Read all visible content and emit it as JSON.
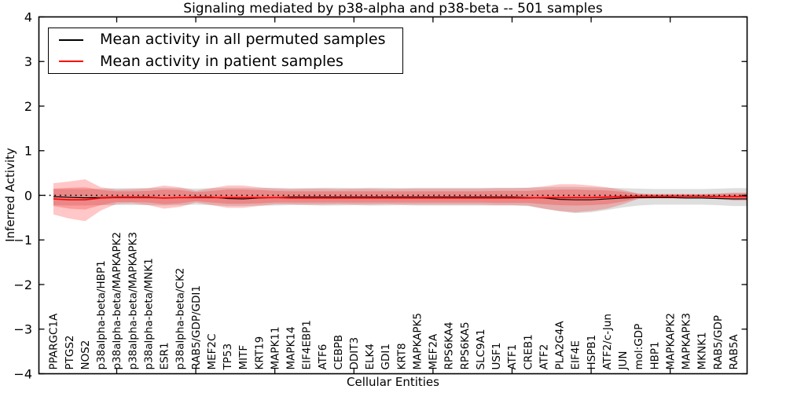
{
  "figure": {
    "title": "Signaling mediated by p38-alpha and p38-beta -- 501 samples",
    "xlabel": "Cellular Entities",
    "ylabel": "Inferred Activity"
  },
  "chart_data": {
    "type": "line",
    "title": "Signaling mediated by p38-alpha and p38-beta -- 501 samples",
    "xlabel": "Cellular Entities",
    "ylabel": "Inferred Activity",
    "ylim": [
      -4,
      4
    ],
    "yticks": [
      {
        "value": 4,
        "label": "4"
      },
      {
        "value": 3,
        "label": "3"
      },
      {
        "value": 2,
        "label": "2"
      },
      {
        "value": 1,
        "label": "1"
      },
      {
        "value": 0,
        "label": "0"
      },
      {
        "value": -1,
        "label": "−1"
      },
      {
        "value": -2,
        "label": "−2"
      },
      {
        "value": -3,
        "label": "−3"
      },
      {
        "value": -4,
        "label": "−4"
      }
    ],
    "xtick_every": 5,
    "grid": false,
    "legend_position": "upper left",
    "legend": [
      {
        "label": "Mean activity in all permuted samples",
        "color": "#000000"
      },
      {
        "label": "Mean activity in patient samples",
        "color": "#ff0000"
      }
    ],
    "zero_line": {
      "style": "dotted",
      "color": "#000000",
      "y": 0
    },
    "categories": [
      "PPARGC1A",
      "PTGS2",
      "NOS2",
      "p38alpha-beta/HBP1",
      "p38alpha-beta/MAPKAPK2",
      "p38alpha-beta/MAPKAPK3",
      "p38alpha-beta/MNK1",
      "ESR1",
      "p38alpha-beta/CK2",
      "RAB5/GDP/GDI1",
      "MEF2C",
      "TP53",
      "MITF",
      "KRT19",
      "MAPK11",
      "MAPK14",
      "EIF4EBP1",
      "ATF6",
      "CEBPB",
      "DDIT3",
      "ELK4",
      "GDI1",
      "KRT8",
      "MAPKAPK5",
      "MEF2A",
      "RPS6KA4",
      "RPS6KA5",
      "SLC9A1",
      "USF1",
      "ATF1",
      "CREB1",
      "ATF2",
      "PLA2G4A",
      "EIF4E",
      "HSPB1",
      "ATF2/c-Jun",
      "JUN",
      "mol:GDP",
      "HBP1",
      "MAPKAPK2",
      "MAPKAPK3",
      "MKNK1",
      "RAB5/GDP",
      "RAB5A"
    ],
    "series": [
      {
        "name": "Mean activity in all permuted samples",
        "color": "#000000",
        "values": [
          -0.03,
          -0.045,
          -0.055,
          -0.05,
          -0.04,
          -0.04,
          -0.04,
          -0.06,
          -0.05,
          -0.04,
          -0.04,
          -0.07,
          -0.08,
          -0.06,
          -0.05,
          -0.04,
          -0.04,
          -0.04,
          -0.04,
          -0.04,
          -0.04,
          -0.04,
          -0.04,
          -0.04,
          -0.04,
          -0.04,
          -0.04,
          -0.04,
          -0.04,
          -0.04,
          -0.05,
          -0.06,
          -0.09,
          -0.1,
          -0.1,
          -0.08,
          -0.06,
          -0.05,
          -0.05,
          -0.05,
          -0.06,
          -0.06,
          -0.07,
          -0.08
        ]
      },
      {
        "name": "Mean activity in patient samples",
        "color": "#ff0000",
        "values": [
          -0.08,
          -0.1,
          -0.1,
          -0.06,
          -0.05,
          -0.05,
          -0.05,
          -0.06,
          -0.05,
          -0.05,
          -0.05,
          -0.05,
          -0.05,
          -0.05,
          -0.05,
          -0.06,
          -0.06,
          -0.06,
          -0.06,
          -0.06,
          -0.06,
          -0.06,
          -0.06,
          -0.06,
          -0.06,
          -0.06,
          -0.06,
          -0.06,
          -0.06,
          -0.06,
          -0.06,
          -0.05,
          -0.05,
          -0.05,
          -0.05,
          -0.04,
          -0.03,
          -0.02,
          -0.02,
          -0.02,
          -0.02,
          -0.02,
          -0.03,
          -0.03
        ]
      }
    ],
    "bands": [
      {
        "name": "permuted-samples-std-band",
        "color": "#000000",
        "opacity": 0.13,
        "upper": [
          0.14,
          0.14,
          0.14,
          0.15,
          0.16,
          0.16,
          0.16,
          0.17,
          0.16,
          0.15,
          0.16,
          0.17,
          0.17,
          0.16,
          0.17,
          0.16,
          0.16,
          0.17,
          0.17,
          0.16,
          0.17,
          0.17,
          0.16,
          0.17,
          0.17,
          0.17,
          0.17,
          0.17,
          0.17,
          0.17,
          0.17,
          0.18,
          0.19,
          0.19,
          0.18,
          0.17,
          0.16,
          0.15,
          0.14,
          0.14,
          0.14,
          0.14,
          0.15,
          0.16
        ],
        "lower": [
          -0.22,
          -0.23,
          -0.23,
          -0.22,
          -0.22,
          -0.22,
          -0.22,
          -0.23,
          -0.22,
          -0.21,
          -0.22,
          -0.24,
          -0.24,
          -0.23,
          -0.23,
          -0.22,
          -0.22,
          -0.23,
          -0.23,
          -0.22,
          -0.23,
          -0.23,
          -0.22,
          -0.23,
          -0.23,
          -0.23,
          -0.23,
          -0.23,
          -0.23,
          -0.23,
          -0.24,
          -0.3,
          -0.36,
          -0.4,
          -0.38,
          -0.33,
          -0.27,
          -0.23,
          -0.21,
          -0.21,
          -0.21,
          -0.21,
          -0.22,
          -0.24
        ]
      },
      {
        "name": "patient-samples-std-band-outer",
        "color": "#ff0000",
        "opacity": 0.22,
        "upper": [
          0.27,
          0.31,
          0.36,
          0.18,
          0.13,
          0.14,
          0.16,
          0.22,
          0.18,
          0.1,
          0.16,
          0.22,
          0.22,
          0.18,
          0.15,
          0.14,
          0.15,
          0.15,
          0.14,
          0.15,
          0.15,
          0.14,
          0.15,
          0.15,
          0.15,
          0.15,
          0.15,
          0.15,
          0.16,
          0.16,
          0.17,
          0.2,
          0.25,
          0.25,
          0.22,
          0.18,
          0.12,
          0.04,
          0.03,
          0.03,
          0.03,
          0.03,
          0.04,
          0.06
        ],
        "lower": [
          -0.43,
          -0.52,
          -0.58,
          -0.34,
          -0.19,
          -0.18,
          -0.22,
          -0.3,
          -0.26,
          -0.16,
          -0.22,
          -0.28,
          -0.28,
          -0.24,
          -0.2,
          -0.2,
          -0.21,
          -0.21,
          -0.2,
          -0.21,
          -0.21,
          -0.2,
          -0.21,
          -0.21,
          -0.21,
          -0.21,
          -0.21,
          -0.21,
          -0.22,
          -0.22,
          -0.23,
          -0.3,
          -0.35,
          -0.38,
          -0.35,
          -0.3,
          -0.2,
          -0.08,
          -0.07,
          -0.07,
          -0.07,
          -0.07,
          -0.08,
          -0.12
        ]
      },
      {
        "name": "patient-samples-std-band-inner",
        "color": "#ff0000",
        "opacity": 0.22,
        "upper": [
          0.15,
          0.17,
          0.18,
          0.12,
          0.09,
          0.09,
          0.1,
          0.13,
          0.12,
          0.07,
          0.1,
          0.13,
          0.13,
          0.12,
          0.1,
          0.09,
          0.09,
          0.09,
          0.09,
          0.09,
          0.09,
          0.09,
          0.09,
          0.09,
          0.09,
          0.09,
          0.09,
          0.09,
          0.1,
          0.1,
          0.1,
          0.12,
          0.13,
          0.13,
          0.12,
          0.11,
          0.08,
          0.03,
          0.02,
          0.02,
          0.02,
          0.02,
          0.03,
          0.04
        ],
        "lower": [
          -0.24,
          -0.3,
          -0.32,
          -0.22,
          -0.15,
          -0.15,
          -0.16,
          -0.2,
          -0.18,
          -0.13,
          -0.16,
          -0.19,
          -0.19,
          -0.18,
          -0.16,
          -0.16,
          -0.16,
          -0.16,
          -0.16,
          -0.16,
          -0.16,
          -0.16,
          -0.16,
          -0.16,
          -0.16,
          -0.16,
          -0.16,
          -0.16,
          -0.17,
          -0.17,
          -0.17,
          -0.2,
          -0.22,
          -0.23,
          -0.22,
          -0.2,
          -0.14,
          -0.07,
          -0.06,
          -0.06,
          -0.06,
          -0.06,
          -0.07,
          -0.1
        ]
      }
    ]
  }
}
